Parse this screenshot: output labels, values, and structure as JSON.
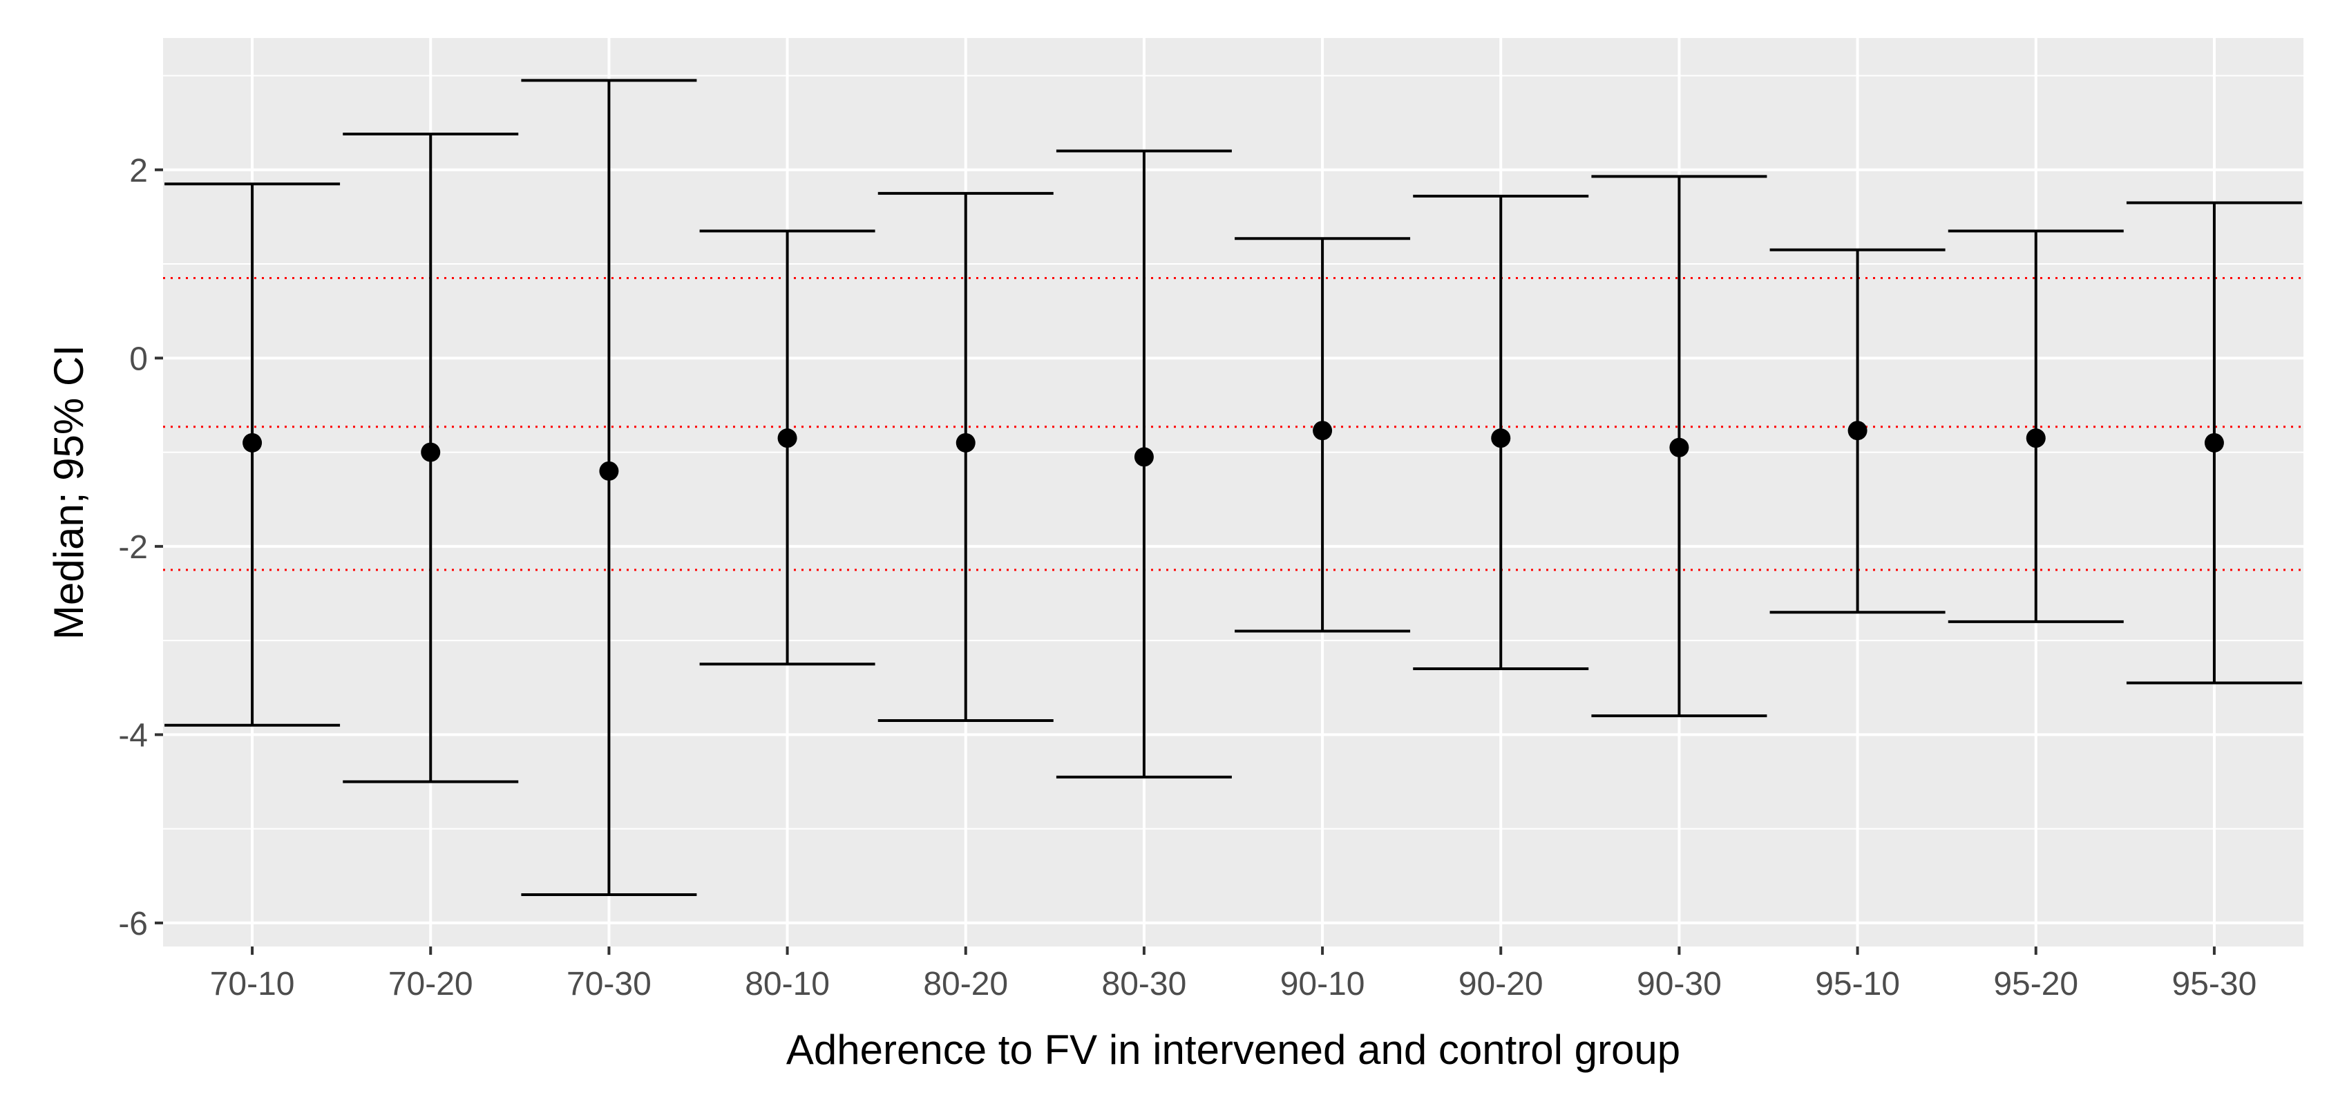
{
  "chart_data": {
    "type": "errorbar",
    "xlabel": "Adherence to FV in intervened and control group",
    "ylabel": "Median; 95% CI",
    "ylim": [
      -6.25,
      3.4
    ],
    "yticks": [
      -6,
      -4,
      -2,
      0,
      2
    ],
    "grid": true,
    "categories": [
      "70-10",
      "70-20",
      "70-30",
      "80-10",
      "80-20",
      "80-30",
      "90-10",
      "90-20",
      "90-30",
      "95-10",
      "95-20",
      "95-30"
    ],
    "median": [
      -0.9,
      -1.0,
      -1.2,
      -0.85,
      -0.9,
      -1.05,
      -0.77,
      -0.85,
      -0.95,
      -0.77,
      -0.85,
      -0.9
    ],
    "lower": [
      -3.9,
      -4.5,
      -5.7,
      -3.25,
      -3.85,
      -4.45,
      -2.9,
      -3.3,
      -3.8,
      -2.7,
      -2.8,
      -3.45
    ],
    "upper": [
      1.85,
      2.38,
      2.95,
      1.35,
      1.75,
      2.2,
      1.27,
      1.72,
      1.93,
      1.15,
      1.35,
      1.65
    ],
    "reference_lines": [
      0.85,
      -0.73,
      -2.25
    ],
    "colors": {
      "panel": "#ebebeb",
      "grid": "#ffffff",
      "marks": "#000000",
      "reference": "#ff0000"
    }
  }
}
